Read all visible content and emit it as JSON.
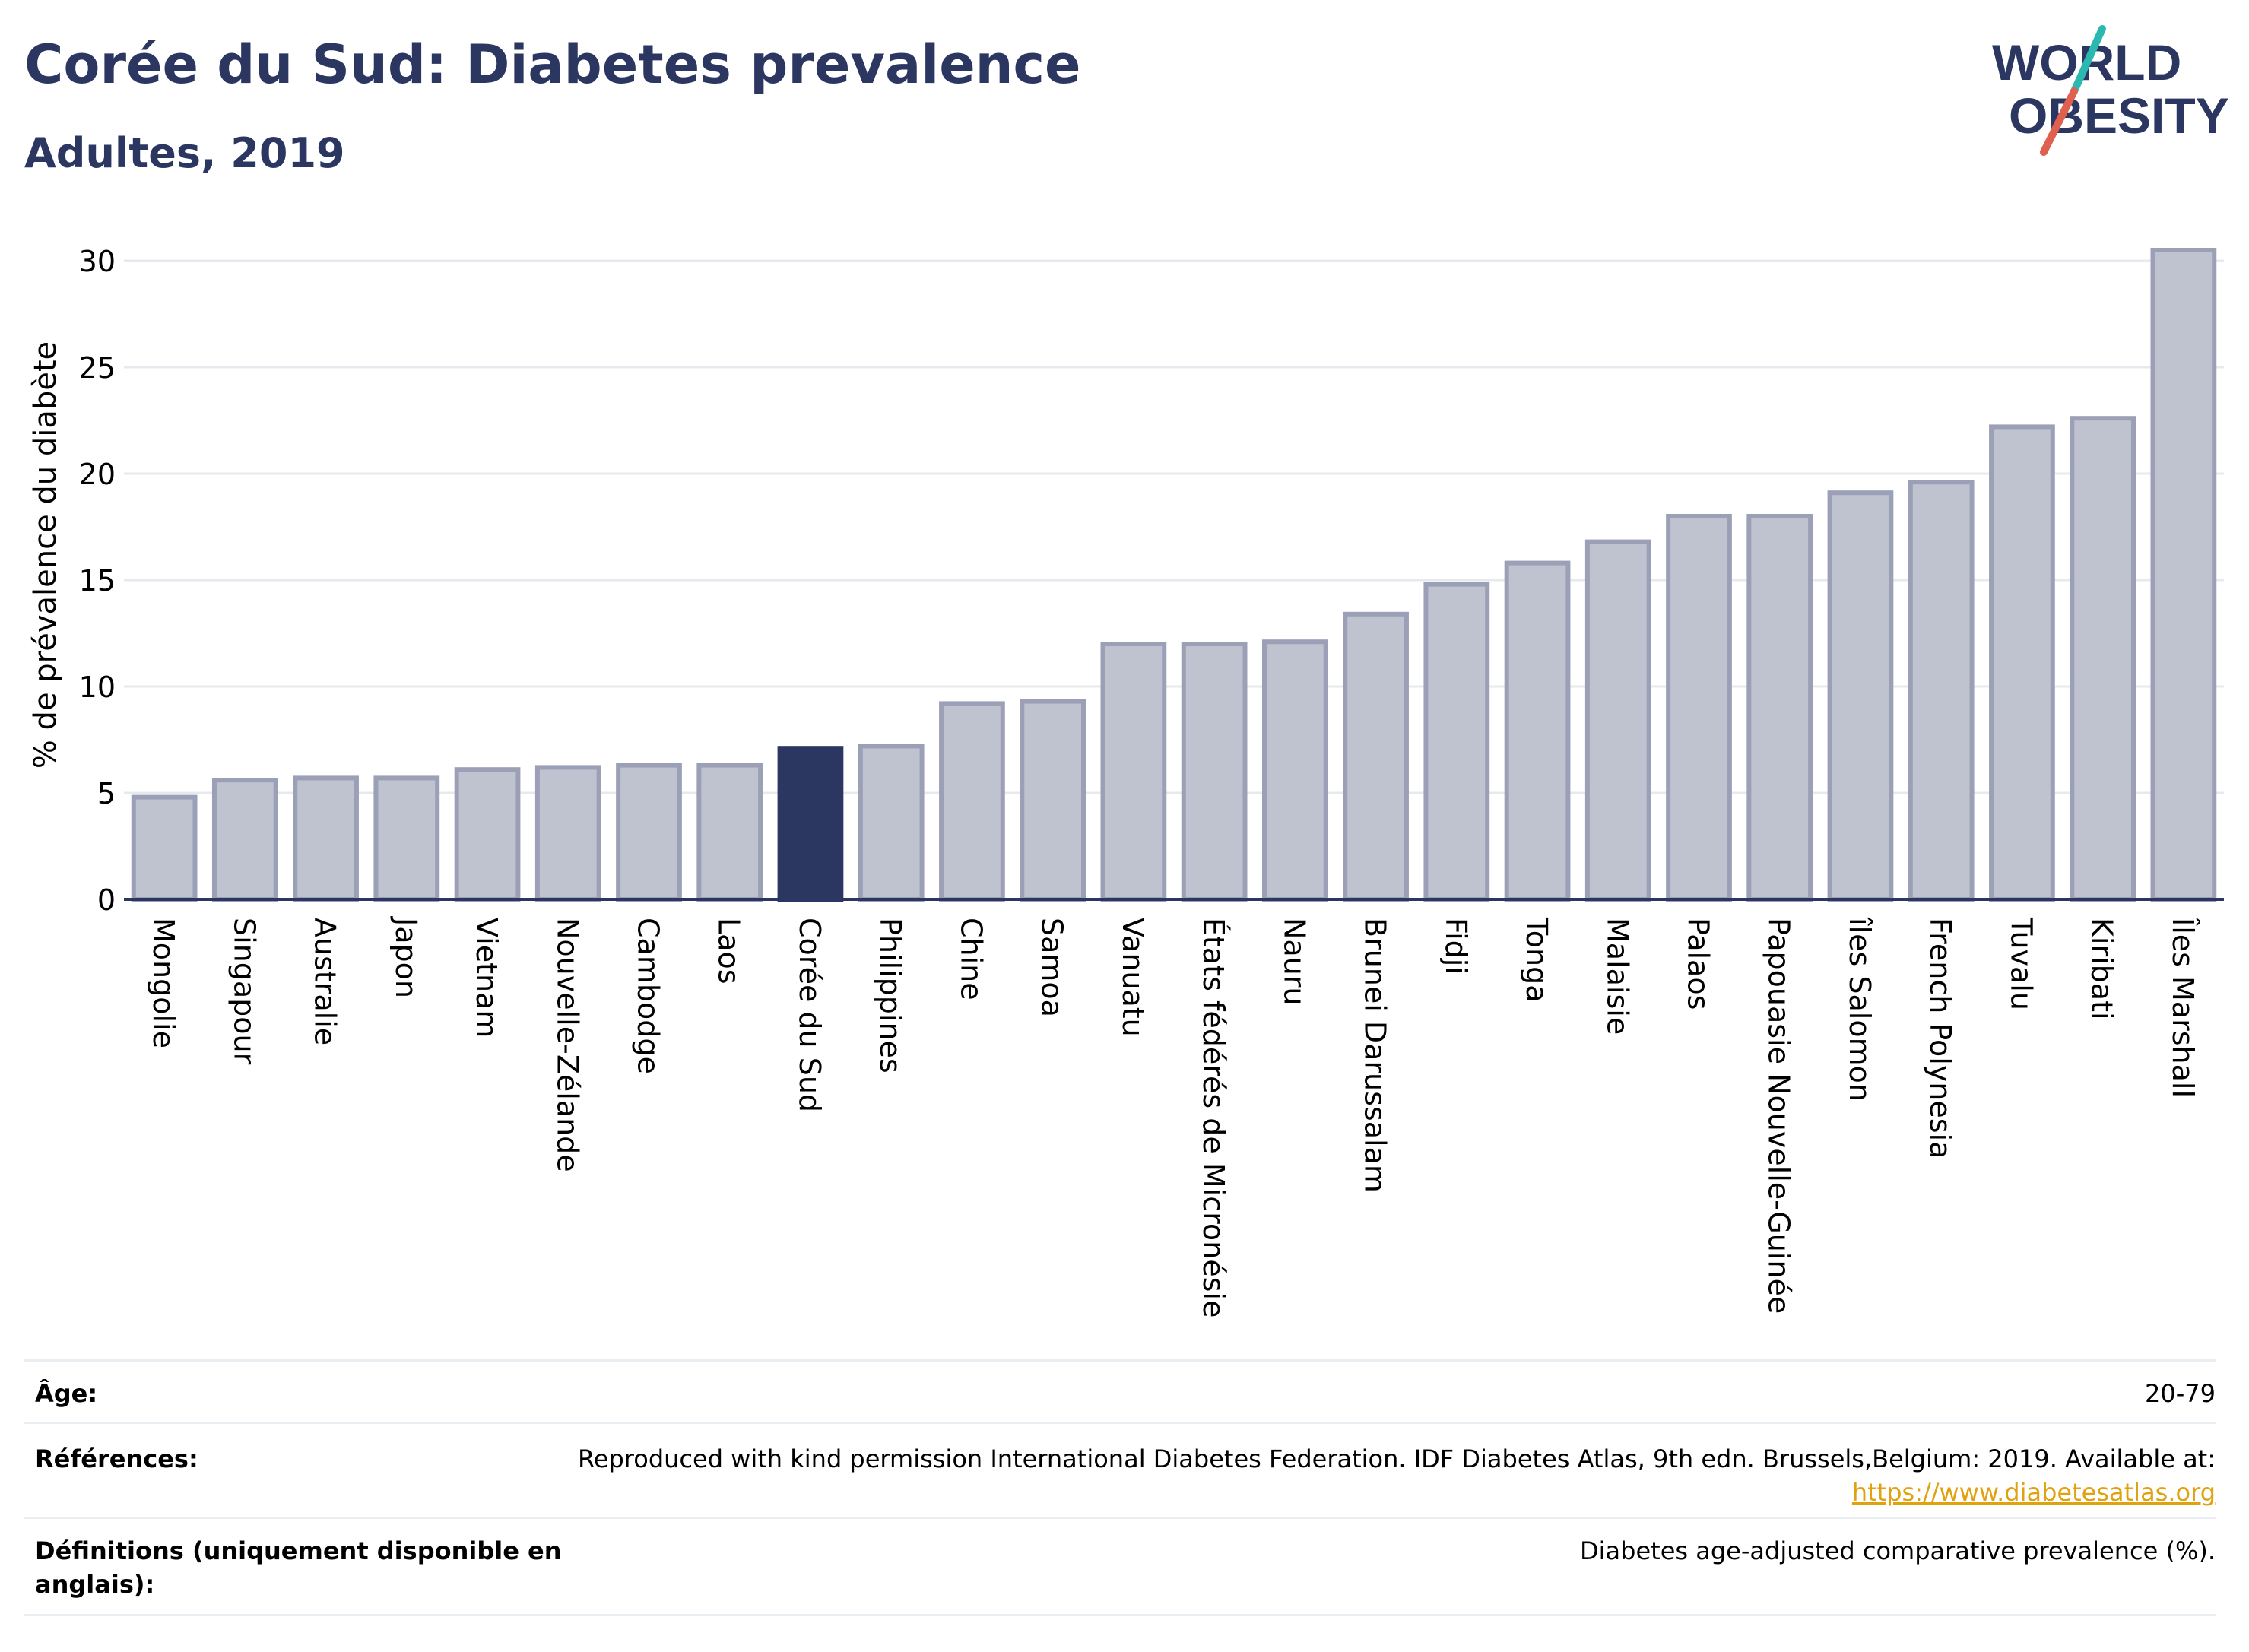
{
  "header": {
    "title": "Corée du Sud: Diabetes prevalence",
    "subtitle": "Adultes, 2019"
  },
  "logo": {
    "line1": "WORLD",
    "line2": "OBESITY",
    "colors": {
      "text": "#2b3661",
      "slash_teal": "#2bb8b0",
      "slash_red": "#e0604f"
    }
  },
  "chart_data": {
    "type": "bar",
    "ylabel": "% de prévalence du diabète",
    "ylim": [
      0,
      31
    ],
    "yticks": [
      0,
      5,
      10,
      15,
      20,
      25,
      30
    ],
    "grid": true,
    "highlight": "Corée du Sud",
    "colors": {
      "bar": "#bfc2cf",
      "bar_edge": "#9ba0b6",
      "highlight": "#2b3661"
    },
    "categories": [
      "Mongolie",
      "Singapour",
      "Australie",
      "Japon",
      "Vietnam",
      "Nouvelle-Zélande",
      "Cambodge",
      "Laos",
      "Corée du Sud",
      "Philippines",
      "Chine",
      "Samoa",
      "Vanuatu",
      "États fédérés de Micronésie",
      "Nauru",
      "Brunei Darussalam",
      "Fidji",
      "Tonga",
      "Malaisie",
      "Palaos",
      "Papouasie Nouvelle-Guinée",
      "îles Salomon",
      "French Polynesia",
      "Tuvalu",
      "Kiribati",
      "Îles Marshall"
    ],
    "values": [
      4.8,
      5.6,
      5.7,
      5.7,
      6.1,
      6.2,
      6.3,
      6.3,
      7.1,
      7.2,
      9.2,
      9.3,
      12.0,
      12.0,
      12.1,
      13.4,
      14.8,
      15.8,
      16.8,
      18.0,
      18.0,
      19.1,
      19.6,
      22.2,
      22.6,
      30.5
    ]
  },
  "meta": {
    "age_label": "Âge:",
    "age_value": "20-79",
    "ref_label": "Références:",
    "ref_text": "Reproduced with kind permission International Diabetes Federation. IDF Diabetes Atlas, 9th edn. Brussels,Belgium: 2019. Available at:",
    "ref_link": "https://www.diabetesatlas.org",
    "def_label_1": "Définitions (uniquement disponible en",
    "def_label_2": "anglais):",
    "def_value": "Diabetes age-adjusted comparative prevalence (%)."
  }
}
